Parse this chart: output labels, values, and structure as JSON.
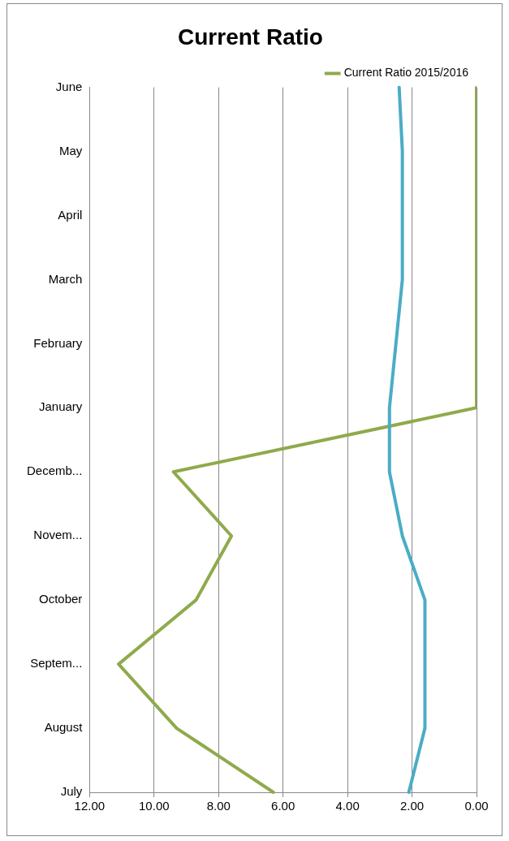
{
  "chart_data": {
    "type": "line",
    "title": "Current Ratio",
    "orientation": "horizontal",
    "categories": [
      "June",
      "May",
      "April",
      "March",
      "February",
      "January",
      "Decemb...",
      "Novem...",
      "October",
      "Septem...",
      "August",
      "July"
    ],
    "series": [
      {
        "color": "#4bacc6",
        "values": [
          2.4,
          2.3,
          2.3,
          2.3,
          2.5,
          2.7,
          2.7,
          2.3,
          1.6,
          1.6,
          1.6,
          2.1
        ]
      },
      {
        "name": "Current Ratio 2015/2016",
        "color": "#8faa4b",
        "values": [
          0,
          0,
          0,
          0,
          0,
          0,
          9.4,
          7.6,
          8.7,
          11.1,
          9.3,
          6.3
        ]
      }
    ],
    "xlim": [
      12,
      0
    ],
    "xticks": [
      {
        "value": 12,
        "label": "12.00"
      },
      {
        "value": 10,
        "label": "10.00"
      },
      {
        "value": 8,
        "label": "8.00"
      },
      {
        "value": 6,
        "label": "6.00"
      },
      {
        "value": 4,
        "label": "4.00"
      },
      {
        "value": 2,
        "label": "2.00"
      },
      {
        "value": 0,
        "label": "0.00"
      }
    ],
    "grid": "x",
    "legend": "top right"
  }
}
